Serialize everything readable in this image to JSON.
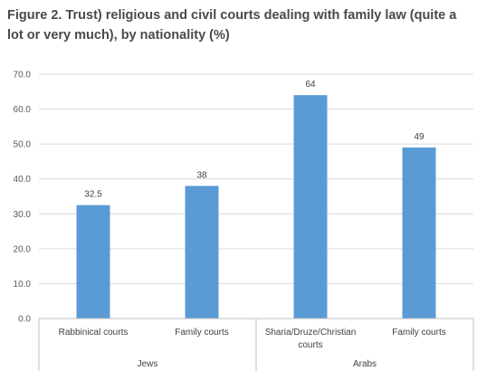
{
  "chart_data": {
    "type": "bar",
    "title": "Figure 2. Trust) religious and civil courts dealing with family law (quite a lot or very much), by nationality (%)",
    "categories": [
      "Rabbinical courts",
      "Family courts",
      "Sharia/Druze/Christian courts",
      "Family courts"
    ],
    "groups": [
      {
        "name": "Jews",
        "categories": [
          "Rabbinical courts",
          "Family courts"
        ]
      },
      {
        "name": "Arabs",
        "categories": [
          "Sharia/Druze/Christian courts",
          "Family courts"
        ]
      }
    ],
    "values": [
      32.5,
      38,
      64,
      49
    ],
    "data_labels": [
      "32.5",
      "38",
      "64",
      "49"
    ],
    "y_ticks": [
      "0.0",
      "10.0",
      "20.0",
      "30.0",
      "40.0",
      "50.0",
      "60.0",
      "70.0"
    ],
    "ylim": [
      0,
      70
    ],
    "grid": true,
    "legend": "none",
    "bar_color": "#5B9BD5",
    "grid_color": "#d9d9d9"
  }
}
